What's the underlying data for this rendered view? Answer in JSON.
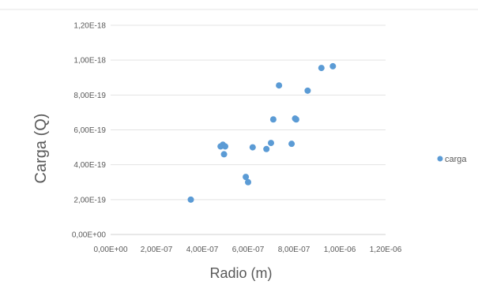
{
  "chart_data": {
    "type": "scatter",
    "title": "",
    "xlabel": "Radio (m)",
    "ylabel": "Carga (Q)",
    "xlim": [
      0,
      1.2e-06
    ],
    "ylim": [
      0,
      1.2e-18
    ],
    "x_ticks": [
      "0,00E+00",
      "2,00E-07",
      "4,00E-07",
      "6,00E-07",
      "8,00E-07",
      "1,00E-06",
      "1,20E-06"
    ],
    "y_ticks": [
      "0,00E+00",
      "2,00E-19",
      "4,00E-19",
      "6,00E-19",
      "8,00E-19",
      "1,00E-18",
      "1,20E-18"
    ],
    "grid": "horizontal",
    "legend": "right",
    "series": [
      {
        "name": "carga",
        "color": "#5b9bd5",
        "points": [
          {
            "x": 3.5e-07,
            "y": 2e-19
          },
          {
            "x": 4.8e-07,
            "y": 5.05e-19
          },
          {
            "x": 4.9e-07,
            "y": 5.15e-19
          },
          {
            "x": 5e-07,
            "y": 5.05e-19
          },
          {
            "x": 4.95e-07,
            "y": 4.6e-19
          },
          {
            "x": 5.9e-07,
            "y": 3.3e-19
          },
          {
            "x": 6e-07,
            "y": 3e-19
          },
          {
            "x": 6.2e-07,
            "y": 5e-19
          },
          {
            "x": 6.8e-07,
            "y": 4.9e-19
          },
          {
            "x": 7e-07,
            "y": 5.25e-19
          },
          {
            "x": 7.1e-07,
            "y": 6.6e-19
          },
          {
            "x": 7.35e-07,
            "y": 8.55e-19
          },
          {
            "x": 7.9e-07,
            "y": 5.2e-19
          },
          {
            "x": 8.05e-07,
            "y": 6.65e-19
          },
          {
            "x": 8.1e-07,
            "y": 6.6e-19
          },
          {
            "x": 8.6e-07,
            "y": 8.25e-19
          },
          {
            "x": 9.2e-07,
            "y": 9.55e-19
          },
          {
            "x": 9.7e-07,
            "y": 9.65e-19
          }
        ]
      }
    ]
  }
}
